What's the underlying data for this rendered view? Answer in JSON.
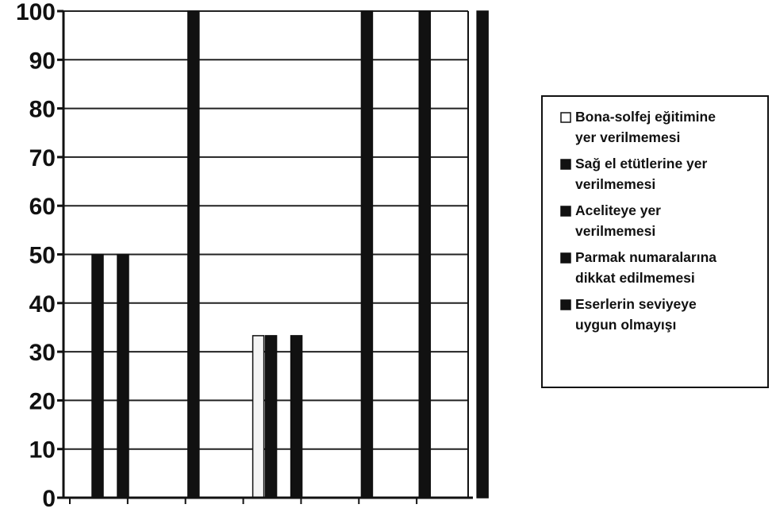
{
  "chart_data": {
    "type": "bar",
    "categories": [
      "",
      "",
      "",
      "",
      "",
      "",
      ""
    ],
    "series": [
      {
        "name": "Bona-solfej eğitimine yer verilmemesi",
        "color": "#f4f4f4",
        "values": [
          0,
          0,
          0,
          33.3,
          0,
          0,
          0
        ]
      },
      {
        "name": "Sağ el etütlerine yer verilmemesi",
        "color": "#111111",
        "values": [
          50,
          0,
          0,
          33.3,
          0,
          0,
          0
        ]
      },
      {
        "name": "Aceliteye yer verilmemesi",
        "color": "#111111",
        "values": [
          0,
          0,
          0,
          0,
          0,
          0,
          0
        ]
      },
      {
        "name": "Parmak numaralarına dikkat edilmemesi",
        "color": "#111111",
        "values": [
          50,
          0,
          0,
          33.3,
          0,
          0,
          0
        ]
      },
      {
        "name": "Eserlerin seviyeye uygun olmayışı",
        "color": "#111111",
        "values": [
          0,
          100,
          0,
          0,
          100,
          100,
          100
        ]
      }
    ],
    "y_ticks": [
      "0",
      "10",
      "20",
      "30",
      "40",
      "50",
      "60",
      "70",
      "80",
      "90",
      "100"
    ],
    "ylim": [
      0,
      100
    ],
    "grid": true,
    "legend": {
      "position": "right",
      "entries": [
        {
          "line1": "Bona-solfej eğitimine",
          "line2": "yer verilmemesi",
          "marker": "□"
        },
        {
          "line1": "Sağ el etütlerine yer",
          "line2": "verilmemesi",
          "marker": "■"
        },
        {
          "line1": "Aceliteye yer",
          "line2": "verilmemesi",
          "marker": "■"
        },
        {
          "line1": "Parmak numaralarına",
          "line2": "dikkat edilmemesi",
          "marker": "■"
        },
        {
          "line1": "Eserlerin seviyeye",
          "line2": "uygun olmayışı",
          "marker": "■"
        }
      ]
    }
  }
}
